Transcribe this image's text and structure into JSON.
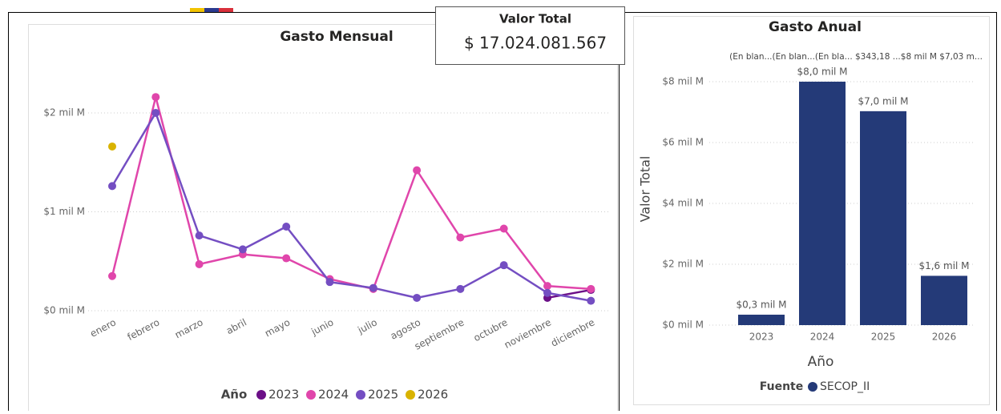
{
  "card": {
    "title": "Valor Total",
    "value": "$ 17.024.081.567"
  },
  "chart_data": [
    {
      "type": "line",
      "title": "Gasto Mensual",
      "categories": [
        "enero",
        "febrero",
        "marzo",
        "abril",
        "mayo",
        "junio",
        "julio",
        "agosto",
        "septiembre",
        "octubre",
        "noviembre",
        "diciembre"
      ],
      "series": [
        {
          "name": "2023",
          "color": "#6b0f87",
          "values": [
            null,
            null,
            null,
            null,
            null,
            null,
            null,
            null,
            null,
            null,
            0.13,
            0.21
          ]
        },
        {
          "name": "2024",
          "color": "#e046ab",
          "values": [
            0.35,
            2.16,
            0.47,
            0.57,
            0.53,
            0.32,
            0.22,
            1.42,
            0.74,
            0.83,
            0.25,
            0.22
          ]
        },
        {
          "name": "2025",
          "color": "#744ec2",
          "values": [
            1.26,
            2.0,
            0.76,
            0.62,
            0.85,
            0.29,
            0.23,
            0.13,
            0.22,
            0.46,
            0.18,
            0.1
          ]
        },
        {
          "name": "2026",
          "color": "#d9b300",
          "values": [
            1.66,
            null,
            null,
            null,
            null,
            null,
            null,
            null,
            null,
            null,
            null,
            null
          ]
        }
      ],
      "ylim": [
        0,
        2.7
      ],
      "yticks": [
        {
          "value": 0,
          "label": "$0 mil M"
        },
        {
          "value": 1,
          "label": "$1 mil M"
        },
        {
          "value": 2,
          "label": "$2 mil M"
        }
      ],
      "grid": true,
      "legend_title": "Año"
    },
    {
      "type": "bar",
      "title": "Gasto Anual",
      "annotation": "(En blan...(En blan...(En bla... $343,18 ...$8 mil M $7,03 m...",
      "categories": [
        "2023",
        "2024",
        "2025",
        "2026"
      ],
      "series": [
        {
          "name": "SECOP_II",
          "color": "#243a78",
          "values": [
            0.343,
            8.0,
            7.03,
            1.62
          ],
          "value_labels": [
            "$0,3 mil M",
            "$8,0 mil M",
            "$7,0 mil M",
            "$1,6 mil M"
          ]
        }
      ],
      "ylim": [
        0,
        8.4
      ],
      "yticks": [
        {
          "value": 0,
          "label": "$0 mil M"
        },
        {
          "value": 2,
          "label": "$2 mil M"
        },
        {
          "value": 4,
          "label": "$4 mil M"
        },
        {
          "value": 6,
          "label": "$6 mil M"
        },
        {
          "value": 8,
          "label": "$8 mil M"
        }
      ],
      "x_label": "Año",
      "y_label": "Valor Total",
      "grid": true,
      "legend_title": "Fuente"
    }
  ]
}
